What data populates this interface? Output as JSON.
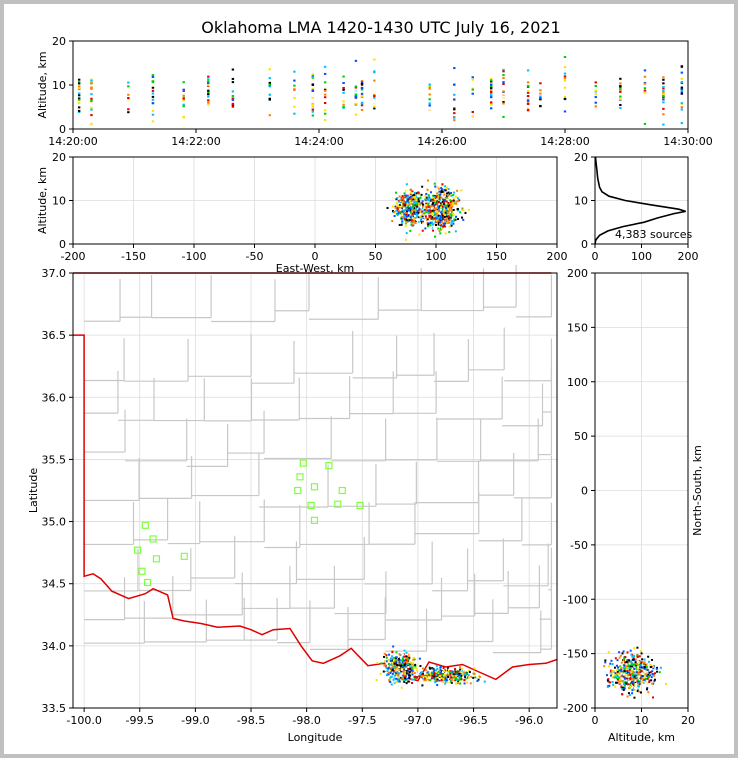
{
  "chart_data": [
    {
      "panel": "time-altitude",
      "type": "scatter",
      "title": "Oklahoma LMA 1420-1430 UTC July 16, 2021",
      "xlabel": "",
      "ylabel": "Altitude, km",
      "x_ticks": [
        "14:20:00",
        "14:22:00",
        "14:24:00",
        "14:26:00",
        "14:28:00",
        "14:30:00"
      ],
      "xlim_minutes": [
        0,
        10
      ],
      "ylim": [
        0,
        20
      ],
      "y_ticks": [
        0,
        10,
        20
      ],
      "flash_times_min": [
        0.1,
        0.3,
        0.9,
        1.3,
        1.8,
        2.2,
        2.6,
        3.2,
        3.6,
        3.9,
        4.1,
        4.4,
        4.6,
        4.7,
        4.9,
        5.8,
        6.2,
        6.5,
        6.8,
        7.0,
        7.4,
        7.6,
        8.0,
        8.5,
        8.9,
        9.3,
        9.6,
        9.9
      ],
      "grid": false
    },
    {
      "panel": "east-west-altitude",
      "type": "heatmap",
      "xlabel": "East-West, km",
      "ylabel": "Altitude, km",
      "xlim": [
        -200,
        200
      ],
      "ylim": [
        0,
        20
      ],
      "x_ticks": [
        -200,
        -150,
        -100,
        -50,
        0,
        50,
        100,
        150,
        200
      ],
      "y_ticks": [
        0,
        10,
        20
      ],
      "clusters": [
        {
          "center_x": 78,
          "center_alt": 8,
          "spread_x": 8,
          "spread_alt": 2.5
        },
        {
          "center_x": 103,
          "center_alt": 8,
          "spread_x": 12,
          "spread_alt": 3
        }
      ],
      "grid": true
    },
    {
      "panel": "altitude-histogram",
      "type": "line",
      "xlim": [
        0,
        200
      ],
      "ylim": [
        0,
        20
      ],
      "x_ticks": [
        0,
        100,
        200
      ],
      "y_ticks": [
        0,
        10,
        20
      ],
      "annotation": "4,383 sources",
      "profile": [
        [
          0,
          0
        ],
        [
          2,
          1
        ],
        [
          10,
          2
        ],
        [
          28,
          3
        ],
        [
          60,
          4
        ],
        [
          105,
          5
        ],
        [
          135,
          6
        ],
        [
          170,
          7
        ],
        [
          195,
          7.5
        ],
        [
          180,
          8
        ],
        [
          120,
          9
        ],
        [
          65,
          10
        ],
        [
          30,
          11
        ],
        [
          15,
          12
        ],
        [
          10,
          13
        ],
        [
          8,
          14
        ],
        [
          6,
          15
        ],
        [
          5,
          16
        ],
        [
          4,
          17
        ],
        [
          3,
          18
        ],
        [
          2,
          19
        ],
        [
          1,
          20
        ]
      ]
    },
    {
      "panel": "plan-view-map",
      "type": "scatter",
      "xlabel": "Longitude",
      "ylabel": "Latitude",
      "xlim": [
        -100.1,
        -95.75
      ],
      "ylim": [
        33.5,
        37.0
      ],
      "x_ticks": [
        "-100.0",
        "-99.5",
        "-99.0",
        "-98.5",
        "-98.0",
        "-97.5",
        "-97.0",
        "-96.5",
        "-96.0"
      ],
      "y_ticks": [
        "33.5",
        "34.0",
        "34.5",
        "35.0",
        "35.5",
        "36.0",
        "36.5",
        "37.0"
      ],
      "lma_stations": [
        [
          -99.45,
          34.97
        ],
        [
          -99.38,
          34.86
        ],
        [
          -99.52,
          34.77
        ],
        [
          -99.35,
          34.7
        ],
        [
          -99.48,
          34.6
        ],
        [
          -99.43,
          34.51
        ],
        [
          -99.1,
          34.72
        ],
        [
          -98.03,
          35.47
        ],
        [
          -98.06,
          35.36
        ],
        [
          -98.08,
          35.25
        ],
        [
          -97.96,
          35.13
        ],
        [
          -97.93,
          35.28
        ],
        [
          -97.93,
          35.01
        ],
        [
          -97.8,
          35.45
        ],
        [
          -97.72,
          35.14
        ],
        [
          -97.68,
          35.25
        ],
        [
          -97.52,
          35.13
        ]
      ],
      "source_clusters": [
        {
          "lon": -97.15,
          "lat": 33.82,
          "spread_lon": 0.13,
          "spread_lat": 0.1
        },
        {
          "lon": -96.75,
          "lat": 33.76,
          "spread_lon": 0.2,
          "spread_lat": 0.05
        }
      ],
      "grid": true
    },
    {
      "panel": "north-south-altitude",
      "type": "heatmap",
      "xlabel": "Altitude, km",
      "ylabel": "North-South, km",
      "xlim": [
        0,
        20
      ],
      "ylim": [
        -200,
        200
      ],
      "x_ticks": [
        0,
        10,
        20
      ],
      "y_ticks": [
        -200,
        -150,
        -100,
        -50,
        0,
        50,
        100,
        150,
        200
      ],
      "cluster": {
        "center_alt": 8,
        "center_y": -167,
        "spread_alt": 3,
        "spread_y": 8
      },
      "grid": true
    }
  ],
  "colors": {
    "boundary": "#e00000",
    "counties": "#c8c8c8",
    "stations": "#80ff40",
    "histogram": "#000000",
    "source_palette": [
      "#0050ff",
      "#00c0ff",
      "#00d000",
      "#ffe000",
      "#ff8000",
      "#e00000",
      "#000000",
      "#ffffff"
    ]
  }
}
